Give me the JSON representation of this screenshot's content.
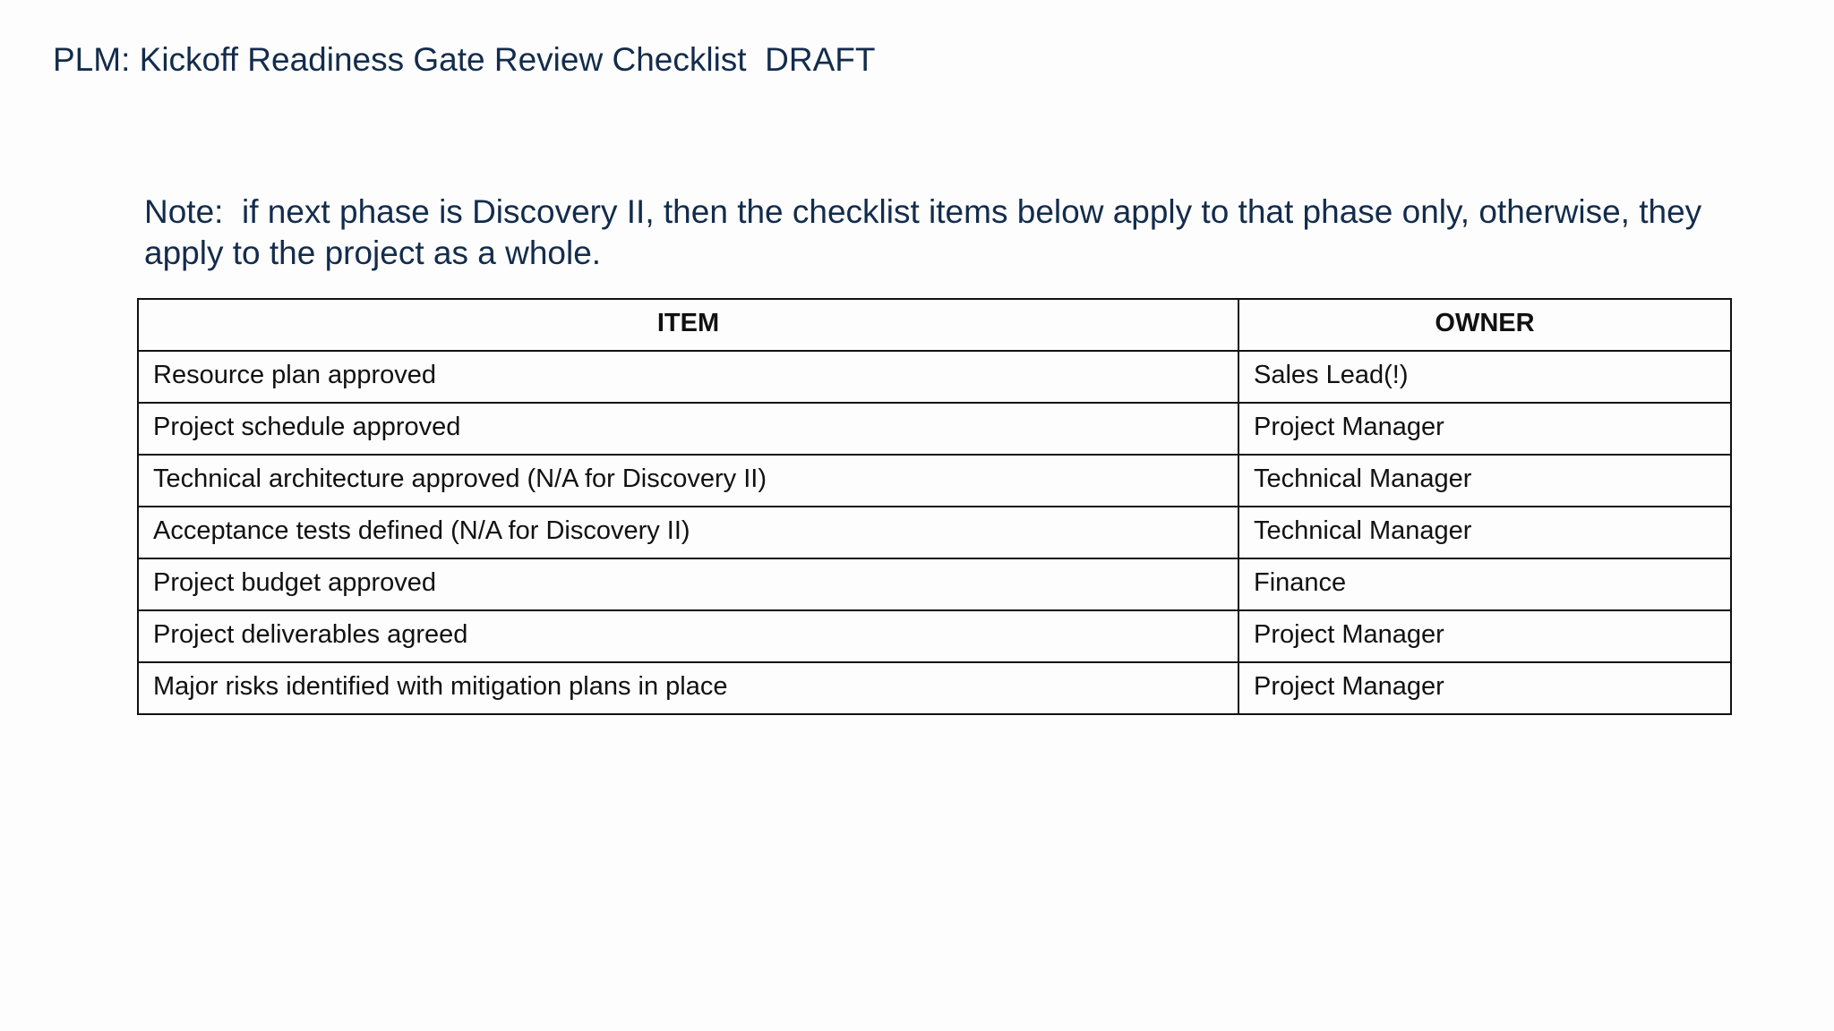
{
  "title": "PLM: Kickoff Readiness Gate Review Checklist  DRAFT",
  "note": "Note:  if next phase is Discovery II, then the checklist items below apply to that phase only, otherwise, they apply to the project as a whole.",
  "table": {
    "headers": [
      "ITEM",
      "OWNER"
    ],
    "rows": [
      [
        "Resource plan approved",
        "Sales Lead(!)"
      ],
      [
        "Project schedule approved",
        "Project Manager"
      ],
      [
        "Technical architecture approved (N/A for Discovery II)",
        "Technical Manager"
      ],
      [
        "Acceptance tests defined (N/A for Discovery II)",
        "Technical Manager"
      ],
      [
        "Project budget approved",
        "Finance"
      ],
      [
        "Project deliverables agreed",
        "Project Manager"
      ],
      [
        "Major risks identified with mitigation plans in place",
        "Project Manager"
      ]
    ]
  }
}
